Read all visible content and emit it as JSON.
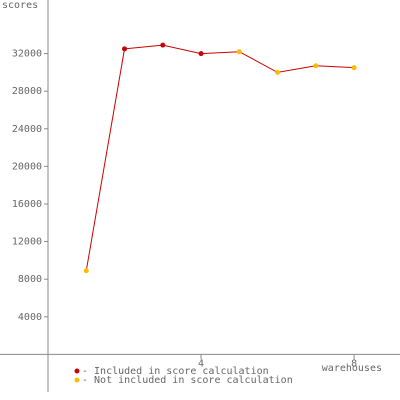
{
  "chart_data": {
    "type": "line",
    "y_label": "scores",
    "x_label": "warehouses",
    "x": [
      1,
      2,
      3,
      4,
      5,
      6,
      7,
      8
    ],
    "values": [
      8900,
      32500,
      32900,
      32000,
      32200,
      30000,
      30700,
      30500
    ],
    "line_color": "#cc0000",
    "point_colors": [
      "#ffbb00",
      "#cc0000",
      "#cc0000",
      "#cc0000",
      "#ffbb00",
      "#ffbb00",
      "#ffbb00",
      "#ffbb00"
    ],
    "legend": [
      {
        "label": "- Included in score calculation",
        "color": "#cc0000"
      },
      {
        "label": "- Not included in score calculation",
        "color": "#ffbb00"
      }
    ],
    "xlim": [
      0,
      9.2
    ],
    "xticks": [
      4,
      8
    ],
    "ylim": [
      -4000,
      37700
    ],
    "yticks": [
      4000,
      8000,
      12000,
      16000,
      20000,
      24000,
      28000,
      32000
    ]
  }
}
